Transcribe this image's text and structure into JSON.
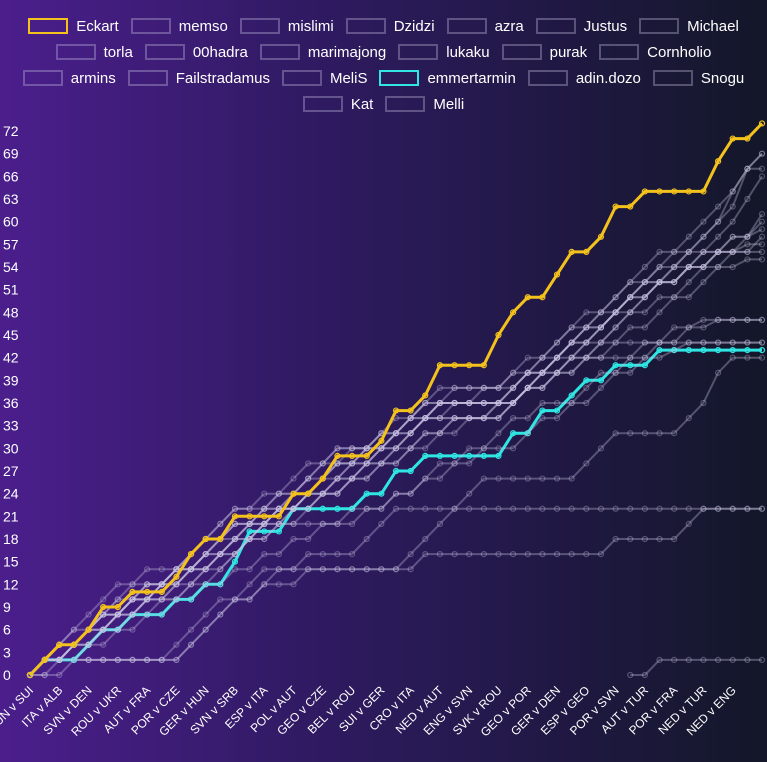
{
  "chart_data": {
    "type": "line",
    "categories": [
      "HUN v SUI",
      null,
      "ITA v ALB",
      null,
      "SVN v DEN",
      null,
      "ROU v UKR",
      null,
      "AUT v FRA",
      null,
      "POR v CZE",
      null,
      "GER v HUN",
      null,
      "SVN v SRB",
      null,
      "ESP v ITA",
      null,
      "POL v AUT",
      null,
      "GEO v CZE",
      null,
      "BEL v ROU",
      null,
      "SUI v GER",
      null,
      "CRO v ITA",
      null,
      "NED v AUT",
      null,
      "ENG v SVN",
      null,
      "SVK v ROU",
      null,
      "GEO v POR",
      null,
      "GER v DEN",
      null,
      "ESP v GEO",
      null,
      "POR v SVN",
      null,
      "AUT v TUR",
      null,
      "POR v FRA",
      null,
      "NED v TUR",
      null,
      "NED v ENG",
      null,
      null
    ],
    "ylim": [
      0,
      72
    ],
    "yticks": [
      0,
      3,
      6,
      9,
      12,
      15,
      18,
      21,
      24,
      27,
      30,
      33,
      36,
      39,
      42,
      45,
      48,
      51,
      54,
      57,
      60,
      63,
      66,
      69,
      72
    ],
    "series": [
      {
        "name": "Eckart",
        "color": "#f4c21c",
        "values": [
          0,
          2,
          4,
          4,
          6,
          9,
          9,
          11,
          11,
          11,
          13,
          16,
          18,
          18,
          21,
          21,
          21,
          21,
          24,
          24,
          26,
          29,
          29,
          29,
          31,
          35,
          35,
          37,
          41,
          41,
          41,
          41,
          45,
          48,
          50,
          50,
          53,
          56,
          56,
          58,
          62,
          62,
          64,
          64,
          64,
          64,
          64,
          68,
          71,
          71,
          73
        ]
      },
      {
        "name": "memso",
        "color": "rgba(200,195,225,0.35)",
        "values": [
          0,
          2,
          4,
          6,
          8,
          10,
          12,
          12,
          14,
          14,
          14,
          16,
          18,
          20,
          22,
          22,
          24,
          24,
          26,
          28,
          28,
          30,
          30,
          30,
          32,
          34,
          34,
          36,
          38,
          38,
          38,
          38,
          38,
          40,
          42,
          42,
          44,
          46,
          48,
          48,
          50,
          52,
          52,
          54,
          56,
          56,
          58,
          60,
          64,
          67,
          69
        ]
      },
      {
        "name": "mislimi",
        "color": "rgba(200,195,225,0.35)",
        "values": [
          0,
          2,
          4,
          4,
          6,
          8,
          10,
          10,
          12,
          12,
          14,
          16,
          18,
          18,
          20,
          20,
          22,
          24,
          24,
          26,
          28,
          28,
          30,
          30,
          32,
          32,
          34,
          34,
          36,
          36,
          36,
          36,
          36,
          38,
          40,
          42,
          42,
          44,
          46,
          48,
          50,
          52,
          54,
          56,
          56,
          58,
          60,
          62,
          64,
          67,
          69
        ]
      },
      {
        "name": "Dzidzi",
        "color": "rgba(200,195,225,0.35)",
        "values": [
          0,
          2,
          4,
          6,
          6,
          8,
          10,
          12,
          12,
          12,
          14,
          16,
          18,
          20,
          22,
          22,
          22,
          24,
          24,
          26,
          28,
          30,
          30,
          30,
          30,
          32,
          34,
          34,
          34,
          34,
          34,
          34,
          34,
          36,
          38,
          38,
          40,
          42,
          44,
          46,
          48,
          50,
          50,
          52,
          54,
          56,
          58,
          60,
          62,
          67,
          67
        ]
      },
      {
        "name": "azra",
        "color": "rgba(200,195,225,0.35)",
        "values": [
          0,
          2,
          2,
          4,
          6,
          8,
          8,
          10,
          10,
          12,
          14,
          14,
          16,
          18,
          20,
          20,
          20,
          22,
          22,
          24,
          26,
          26,
          28,
          28,
          30,
          32,
          34,
          36,
          36,
          36,
          36,
          36,
          36,
          38,
          40,
          40,
          42,
          44,
          46,
          46,
          48,
          50,
          52,
          52,
          54,
          54,
          56,
          58,
          60,
          63,
          66
        ]
      },
      {
        "name": "Justus",
        "color": "rgba(200,195,225,0.35)",
        "values": [
          0,
          2,
          2,
          4,
          6,
          6,
          8,
          8,
          10,
          10,
          12,
          14,
          14,
          16,
          18,
          20,
          20,
          20,
          22,
          22,
          24,
          24,
          26,
          28,
          30,
          30,
          32,
          34,
          36,
          36,
          36,
          36,
          36,
          36,
          38,
          40,
          42,
          44,
          44,
          46,
          48,
          48,
          50,
          52,
          52,
          54,
          54,
          56,
          58,
          58,
          61
        ]
      },
      {
        "name": "Michael",
        "color": "rgba(200,195,225,0.35)",
        "values": [
          0,
          2,
          4,
          4,
          6,
          8,
          8,
          10,
          12,
          12,
          14,
          14,
          16,
          18,
          18,
          20,
          22,
          22,
          24,
          26,
          26,
          28,
          28,
          28,
          30,
          30,
          32,
          34,
          36,
          36,
          36,
          36,
          36,
          36,
          38,
          40,
          42,
          44,
          46,
          46,
          48,
          50,
          50,
          52,
          52,
          54,
          56,
          56,
          58,
          58,
          60
        ]
      },
      {
        "name": "torla",
        "color": "rgba(200,195,225,0.35)",
        "values": [
          0,
          2,
          2,
          4,
          4,
          6,
          8,
          10,
          10,
          12,
          12,
          14,
          16,
          16,
          18,
          20,
          20,
          22,
          22,
          24,
          24,
          26,
          26,
          28,
          28,
          30,
          32,
          34,
          34,
          34,
          34,
          34,
          36,
          38,
          40,
          42,
          44,
          46,
          46,
          48,
          48,
          50,
          52,
          52,
          52,
          54,
          54,
          56,
          56,
          58,
          59
        ]
      },
      {
        "name": "00hadra",
        "color": "rgba(200,195,225,0.35)",
        "values": [
          0,
          2,
          4,
          4,
          6,
          8,
          8,
          8,
          10,
          12,
          12,
          14,
          14,
          16,
          18,
          18,
          20,
          22,
          22,
          24,
          24,
          26,
          28,
          30,
          30,
          32,
          32,
          34,
          36,
          36,
          36,
          36,
          36,
          36,
          38,
          40,
          42,
          42,
          44,
          44,
          46,
          48,
          50,
          52,
          52,
          54,
          54,
          56,
          56,
          56,
          58
        ]
      },
      {
        "name": "marimajong",
        "color": "rgba(200,195,225,0.35)",
        "values": [
          0,
          2,
          2,
          2,
          4,
          6,
          6,
          8,
          10,
          10,
          12,
          12,
          14,
          16,
          16,
          18,
          20,
          22,
          22,
          24,
          26,
          28,
          28,
          30,
          32,
          32,
          34,
          36,
          36,
          38,
          38,
          38,
          38,
          38,
          40,
          40,
          42,
          44,
          44,
          46,
          48,
          50,
          52,
          54,
          54,
          56,
          56,
          56,
          56,
          57,
          57
        ]
      },
      {
        "name": "lukaku",
        "color": "rgba(200,195,225,0.35)",
        "values": [
          0,
          2,
          2,
          4,
          6,
          6,
          8,
          10,
          10,
          12,
          14,
          14,
          16,
          18,
          20,
          20,
          22,
          22,
          22,
          24,
          24,
          26,
          26,
          28,
          28,
          30,
          30,
          32,
          32,
          34,
          34,
          34,
          34,
          36,
          38,
          40,
          40,
          42,
          42,
          44,
          46,
          48,
          48,
          50,
          50,
          52,
          54,
          54,
          56,
          56,
          56
        ]
      },
      {
        "name": "purak",
        "color": "rgba(200,195,225,0.35)",
        "values": [
          0,
          0,
          2,
          4,
          4,
          6,
          6,
          8,
          8,
          10,
          10,
          12,
          12,
          14,
          16,
          18,
          18,
          20,
          20,
          22,
          24,
          24,
          26,
          26,
          28,
          28,
          30,
          32,
          32,
          34,
          34,
          34,
          34,
          36,
          38,
          38,
          40,
          40,
          42,
          44,
          44,
          46,
          46,
          48,
          50,
          50,
          52,
          54,
          54,
          55,
          55
        ]
      },
      {
        "name": "Cornholio",
        "color": "rgba(200,195,225,0.35)",
        "values": [
          0,
          2,
          2,
          2,
          4,
          4,
          6,
          6,
          8,
          8,
          10,
          10,
          12,
          12,
          14,
          14,
          16,
          16,
          18,
          18,
          20,
          20,
          22,
          22,
          22,
          24,
          24,
          26,
          26,
          28,
          28,
          30,
          30,
          30,
          32,
          34,
          34,
          36,
          36,
          38,
          40,
          40,
          42,
          44,
          44,
          46,
          46,
          47,
          47,
          47,
          47
        ]
      },
      {
        "name": "armins",
        "color": "rgba(200,195,225,0.35)",
        "values": [
          0,
          2,
          2,
          4,
          4,
          6,
          8,
          8,
          10,
          10,
          10,
          12,
          14,
          14,
          16,
          18,
          18,
          20,
          20,
          20,
          20,
          20,
          20,
          22,
          22,
          24,
          24,
          26,
          28,
          28,
          30,
          30,
          32,
          34,
          34,
          36,
          36,
          36,
          38,
          40,
          40,
          42,
          42,
          42,
          43,
          44,
          44,
          44,
          44,
          44,
          44
        ]
      },
      {
        "name": "Failstradamus",
        "color": "rgba(200,195,225,0.35)",
        "values": [
          0,
          2,
          4,
          4,
          6,
          6,
          8,
          10,
          12,
          12,
          14,
          14,
          14,
          16,
          16,
          18,
          20,
          22,
          24,
          24,
          26,
          28,
          28,
          30,
          30,
          32,
          32,
          34,
          34,
          36,
          36,
          38,
          38,
          40,
          40,
          40,
          40,
          42,
          42,
          42,
          42,
          42,
          44,
          44,
          44,
          44,
          44,
          44,
          44,
          44,
          44
        ]
      },
      {
        "name": "MeliS",
        "color": "rgba(200,195,225,0.35)",
        "values": [
          0,
          2,
          2,
          4,
          6,
          8,
          8,
          10,
          10,
          12,
          12,
          14,
          16,
          16,
          18,
          18,
          20,
          20,
          22,
          22,
          24,
          24,
          26,
          26,
          28,
          28,
          30,
          30,
          32,
          32,
          34,
          34,
          36,
          36,
          38,
          38,
          40,
          40,
          42,
          42,
          44,
          44,
          44,
          44,
          46,
          46,
          47,
          47,
          47,
          47,
          47
        ]
      },
      {
        "name": "emmertarmin",
        "color": "#2fe6e3",
        "values": [
          0,
          2,
          2,
          2,
          4,
          6,
          6,
          8,
          8,
          8,
          10,
          10,
          12,
          12,
          15,
          19,
          19,
          19,
          22,
          22,
          22,
          22,
          22,
          24,
          24,
          27,
          27,
          29,
          29,
          29,
          29,
          29,
          29,
          32,
          32,
          35,
          35,
          37,
          39,
          39,
          41,
          41,
          41,
          43,
          43,
          43,
          43,
          43,
          43,
          43,
          43
        ]
      },
      {
        "name": "adin.dozo",
        "color": "rgba(200,195,225,0.35)",
        "values": [
          0,
          0,
          0,
          2,
          2,
          2,
          2,
          2,
          2,
          2,
          4,
          6,
          8,
          10,
          10,
          12,
          14,
          14,
          14,
          16,
          16,
          16,
          16,
          18,
          20,
          22,
          22,
          22,
          22,
          22,
          22,
          22,
          22,
          22,
          22,
          22,
          22,
          22,
          22,
          22,
          22,
          22,
          22,
          22,
          22,
          22,
          22,
          22,
          22,
          22,
          22
        ]
      },
      {
        "name": "Snogu",
        "color": "rgba(200,195,225,0.35)",
        "values": [
          0,
          2,
          2,
          2,
          2,
          2,
          2,
          2,
          2,
          2,
          2,
          4,
          6,
          8,
          10,
          10,
          12,
          14,
          14,
          14,
          14,
          14,
          14,
          14,
          14,
          14,
          16,
          18,
          20,
          22,
          24,
          26,
          26,
          26,
          26,
          26,
          26,
          26,
          28,
          30,
          32,
          32,
          32,
          32,
          32,
          34,
          36,
          40,
          42,
          42,
          42
        ]
      },
      {
        "name": "Kat",
        "color": "rgba(200,195,225,0.35)",
        "values": [
          0,
          2,
          2,
          2,
          2,
          2,
          2,
          2,
          2,
          2,
          2,
          4,
          6,
          8,
          10,
          10,
          12,
          12,
          12,
          14,
          14,
          14,
          14,
          14,
          14,
          14,
          14,
          16,
          16,
          16,
          16,
          16,
          16,
          16,
          16,
          16,
          16,
          16,
          16,
          16,
          18,
          18,
          18,
          18,
          18,
          20,
          22,
          22,
          22,
          22,
          22
        ]
      },
      {
        "name": "Melli",
        "color": "rgba(200,195,225,0.35)",
        "values": [
          null,
          null,
          null,
          null,
          null,
          null,
          null,
          null,
          null,
          null,
          null,
          null,
          null,
          null,
          null,
          null,
          null,
          null,
          null,
          null,
          null,
          null,
          null,
          null,
          null,
          null,
          null,
          null,
          null,
          null,
          null,
          null,
          null,
          null,
          null,
          null,
          null,
          null,
          null,
          null,
          null,
          0,
          0,
          2,
          2,
          2,
          2,
          2,
          2,
          2,
          2
        ]
      }
    ]
  }
}
